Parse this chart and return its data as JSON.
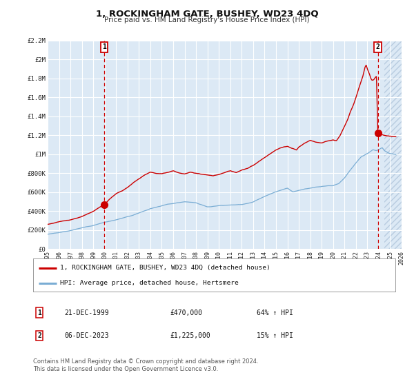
{
  "title": "1, ROCKINGHAM GATE, BUSHEY, WD23 4DQ",
  "subtitle": "Price paid vs. HM Land Registry's House Price Index (HPI)",
  "background_color": "#dce9f5",
  "plot_bg_color": "#dce9f5",
  "outer_bg_color": "#ffffff",
  "red_line_color": "#cc0000",
  "blue_line_color": "#7aadd4",
  "grid_color": "#ffffff",
  "sale1_year": 1999.96,
  "sale1_price": 470000,
  "sale1_label": "1",
  "sale2_year": 2023.92,
  "sale2_price": 1225000,
  "sale2_label": "2",
  "legend_label_red": "1, ROCKINGHAM GATE, BUSHEY, WD23 4DQ (detached house)",
  "legend_label_blue": "HPI: Average price, detached house, Hertsmere",
  "footer_text": "Contains HM Land Registry data © Crown copyright and database right 2024.\nThis data is licensed under the Open Government Licence v3.0.",
  "xmin": 1995,
  "xmax": 2026,
  "ymin": 0,
  "ymax": 2200000,
  "yticks": [
    0,
    200000,
    400000,
    600000,
    800000,
    1000000,
    1200000,
    1400000,
    1600000,
    1800000,
    2000000,
    2200000
  ],
  "ytick_labels": [
    "£0",
    "£200K",
    "£400K",
    "£600K",
    "£800K",
    "£1M",
    "£1.2M",
    "£1.4M",
    "£1.6M",
    "£1.8M",
    "£2M",
    "£2.2M"
  ],
  "xticks": [
    1995,
    1996,
    1997,
    1998,
    1999,
    2000,
    2001,
    2002,
    2003,
    2004,
    2005,
    2006,
    2007,
    2008,
    2009,
    2010,
    2011,
    2012,
    2013,
    2014,
    2015,
    2016,
    2017,
    2018,
    2019,
    2020,
    2021,
    2022,
    2023,
    2024,
    2025,
    2026
  ]
}
